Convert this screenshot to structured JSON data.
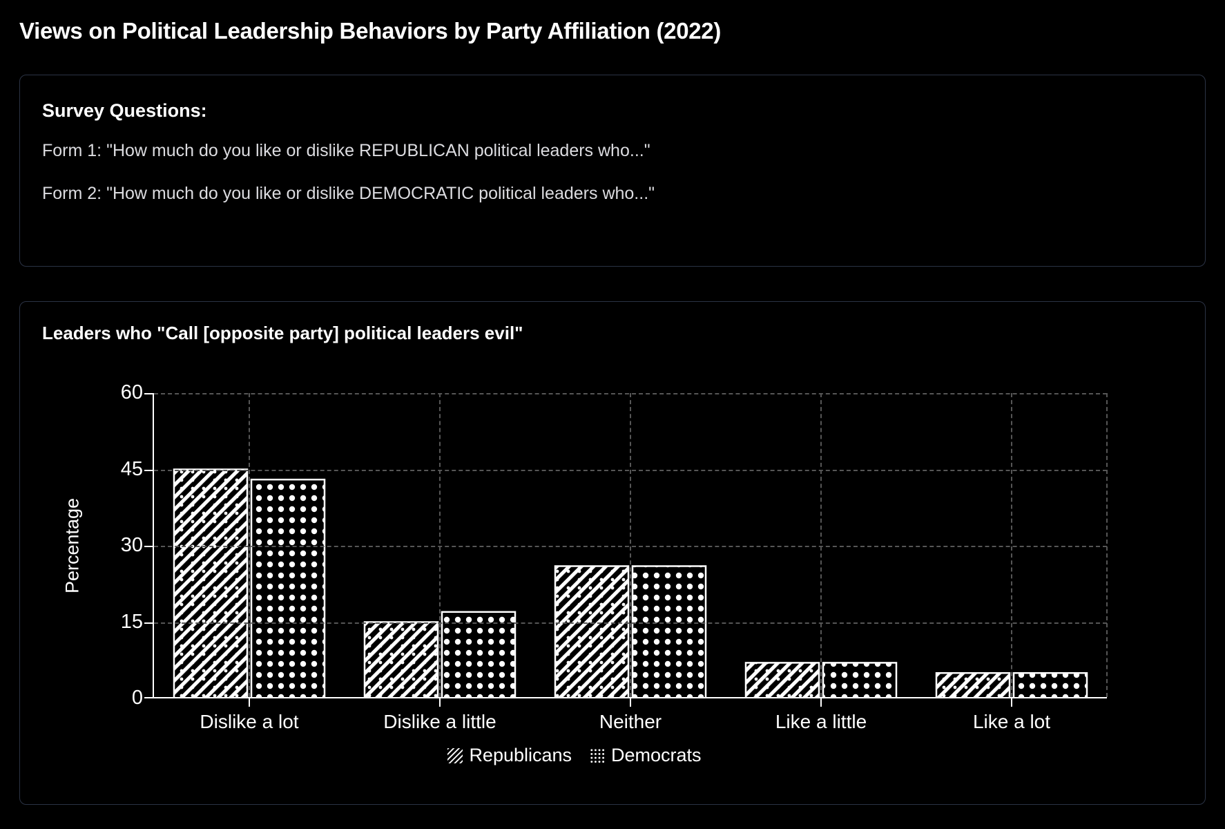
{
  "page": {
    "title": "Views on Political Leadership Behaviors by Party Affiliation (2022)"
  },
  "survey": {
    "heading": "Survey Questions:",
    "form1": "Form 1: \"How much do you like or dislike REPUBLICAN political leaders who...\"",
    "form2": "Form 2: \"How much do you like or dislike DEMOCRATIC political leaders who...\""
  },
  "chart_data": {
    "type": "bar",
    "title": "Leaders who \"Call [opposite party] political leaders evil\"",
    "categories": [
      "Dislike a lot",
      "Dislike a little",
      "Neither",
      "Like a little",
      "Like a lot"
    ],
    "series": [
      {
        "name": "Republicans",
        "pattern": "diagonal-hatch",
        "values": [
          45,
          15,
          26,
          7,
          5
        ]
      },
      {
        "name": "Democrats",
        "pattern": "dots",
        "values": [
          43,
          17,
          26,
          7,
          5
        ]
      }
    ],
    "xlabel": "",
    "ylabel": "Percentage",
    "ylim": [
      0,
      60
    ],
    "yticks": [
      0,
      15,
      30,
      45,
      60
    ],
    "grid": true,
    "legend_position": "bottom",
    "colors": {
      "background": "#000000",
      "bar_fill": "#000000",
      "bar_pattern": "#ffffff",
      "axis": "#ffffff",
      "gridline": "#565656",
      "card_border": "#2b3345",
      "text": "#ffffff",
      "secondary_text": "#dcdce0"
    }
  }
}
